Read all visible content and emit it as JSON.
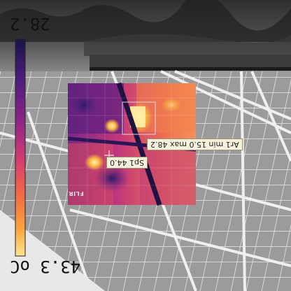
{
  "scale": {
    "max_label": "28.2",
    "min_label": "43.3 oC",
    "colors": [
      "#1a1446",
      "#4b1d7a",
      "#8d2486",
      "#d23c72",
      "#f26b43",
      "#f9a23b",
      "#fde68f"
    ]
  },
  "measurements": {
    "spot_label": "Sp1 44.0",
    "area_label": "Ar1 min 15.0 max 48.2"
  },
  "logo": {
    "text": "FLIR"
  }
}
